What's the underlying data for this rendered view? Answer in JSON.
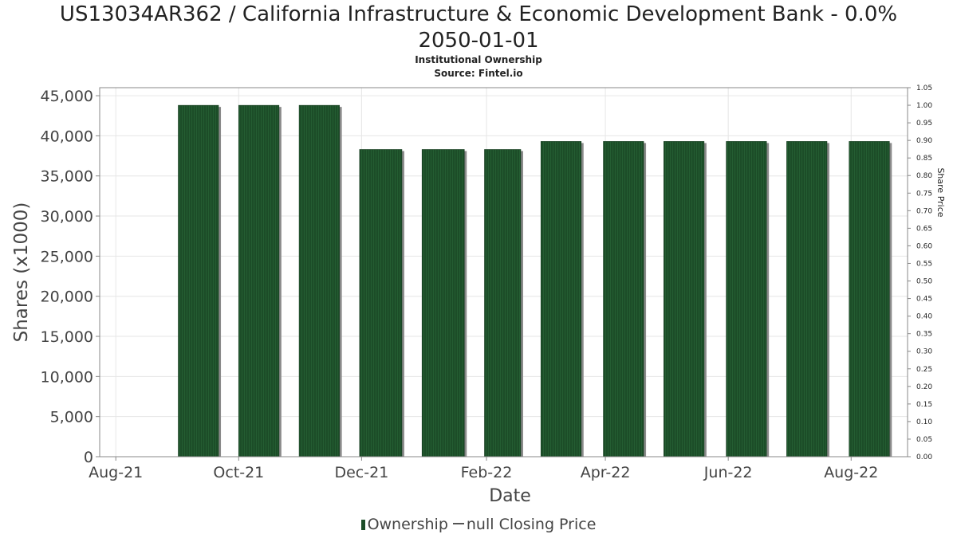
{
  "header": {
    "title_line1": "US13034AR362 / California Infrastructure & Economic Development Bank - 0.0%",
    "title_line2": "2050-01-01",
    "subtitle": "Institutional Ownership",
    "source": "Source: Fintel.io"
  },
  "legend": {
    "ownership": "Ownership",
    "closing_price": "null Closing Price"
  },
  "colors": {
    "bar": "#1c4d28",
    "bar_shadow": "#8a8a8a",
    "grid": "#e6e6e6",
    "axis": "#888888"
  },
  "chart_data": {
    "type": "bar",
    "xlabel": "Date",
    "ylabel": "Shares (x1000)",
    "y2label": "Share Price",
    "x_tick_labels": [
      "Aug-21",
      "Oct-21",
      "Dec-21",
      "Feb-22",
      "Apr-22",
      "Jun-22",
      "Aug-22"
    ],
    "x_ticks": [
      "2021-08-01",
      "2021-10-01",
      "2021-12-01",
      "2022-02-01",
      "2022-04-01",
      "2022-06-01",
      "2022-08-01"
    ],
    "xlim": [
      "2021-07-24",
      "2022-08-29"
    ],
    "ylim": [
      0,
      46000
    ],
    "y_ticks": [
      0,
      5000,
      10000,
      15000,
      20000,
      25000,
      30000,
      35000,
      40000,
      45000
    ],
    "y_tick_labels": [
      "0",
      "5,000",
      "10,000",
      "15,000",
      "20,000",
      "25,000",
      "30,000",
      "35,000",
      "40,000",
      "45,000"
    ],
    "y2lim": [
      0,
      1.05
    ],
    "y2_tick_labels": [
      "0.00",
      "0.05",
      "0.10",
      "0.15",
      "0.20",
      "0.25",
      "0.30",
      "0.35",
      "0.40",
      "0.45",
      "0.50",
      "0.55",
      "0.60",
      "0.65",
      "0.70",
      "0.75",
      "0.80",
      "0.85",
      "0.90",
      "0.95",
      "1.00",
      "1.05"
    ],
    "grid": true,
    "legend_position": "bottom",
    "series": [
      {
        "name": "Ownership",
        "bars": [
          {
            "start": "2021-09-01",
            "end": "2021-09-21",
            "value": 43800
          },
          {
            "start": "2021-10-01",
            "end": "2021-10-21",
            "value": 43800
          },
          {
            "start": "2021-10-31",
            "end": "2021-11-20",
            "value": 43800
          },
          {
            "start": "2021-11-30",
            "end": "2021-12-21",
            "value": 38300
          },
          {
            "start": "2021-12-31",
            "end": "2022-01-21",
            "value": 38300
          },
          {
            "start": "2022-01-31",
            "end": "2022-02-18",
            "value": 38300
          },
          {
            "start": "2022-02-28",
            "end": "2022-03-20",
            "value": 39300
          },
          {
            "start": "2022-03-31",
            "end": "2022-04-20",
            "value": 39300
          },
          {
            "start": "2022-04-30",
            "end": "2022-05-20",
            "value": 39300
          },
          {
            "start": "2022-05-31",
            "end": "2022-06-20",
            "value": 39300
          },
          {
            "start": "2022-06-30",
            "end": "2022-07-20",
            "value": 39300
          },
          {
            "start": "2022-07-31",
            "end": "2022-08-20",
            "value": 39300
          }
        ]
      }
    ]
  }
}
